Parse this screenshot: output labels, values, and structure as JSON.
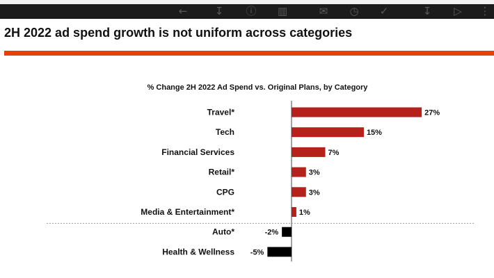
{
  "toolbar": {
    "icons": [
      "back-arrow-icon",
      "download-icon",
      "info-icon",
      "trash-icon",
      "mail-icon",
      "clock-icon",
      "task-check-icon",
      "save-icon",
      "label-icon",
      "more-vert-icon"
    ]
  },
  "slide": {
    "title": "2H 2022 ad spend growth is not uniform across categories",
    "accent_color": "#e8400c"
  },
  "chart_data": {
    "type": "bar",
    "orientation": "horizontal",
    "title": "% Change 2H 2022 Ad Spend vs. Original Plans, by Category",
    "categories": [
      "Travel*",
      "Tech",
      "Financial Services",
      "Retail*",
      "CPG",
      "Media & Entertainment*",
      "Auto*",
      "Health & Wellness"
    ],
    "values": [
      27,
      15,
      7,
      3,
      3,
      1,
      -2,
      -5
    ],
    "value_labels": [
      "27%",
      "15%",
      "7%",
      "3%",
      "3%",
      "1%",
      "-2%",
      "-5%"
    ],
    "unit": "%",
    "positive_color": "#b5211b",
    "negative_color": "#000000",
    "separator_after_index": 5,
    "xlabel": "",
    "ylabel": ""
  }
}
